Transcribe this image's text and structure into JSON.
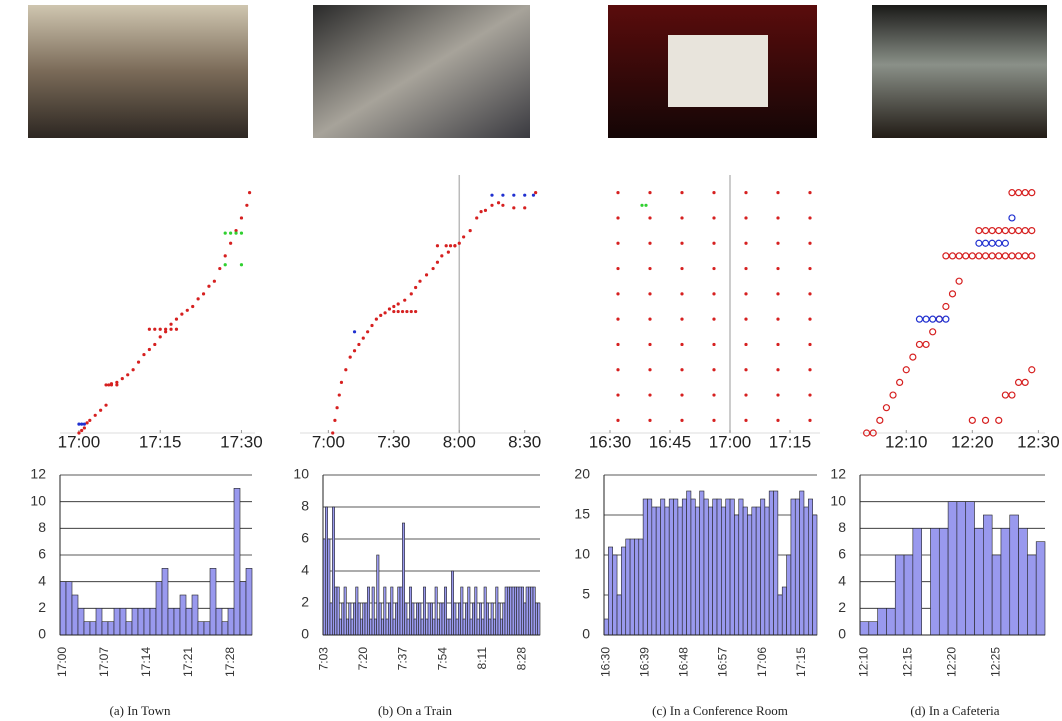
{
  "chart_data": [
    {
      "type": "scatter",
      "xlim": [
        1016.5,
        1052.5
      ],
      "ylim": [
        0,
        20
      ],
      "xticks": [
        {
          "value": 1020,
          "label": "17:00"
        },
        {
          "value": 1035,
          "label": "17:15"
        },
        {
          "value": 1050,
          "label": "17:30"
        }
      ],
      "series": [
        {
          "color": "#d62020",
          "x": [
            1020,
            1020.5,
            1021,
            1021.5,
            1022,
            1023,
            1024,
            1025,
            1025.5,
            1026,
            1027,
            1028,
            1029,
            1030,
            1031,
            1032,
            1033,
            1034,
            1035,
            1036,
            1037,
            1038,
            1039,
            1040,
            1041,
            1042,
            1043,
            1044,
            1045,
            1046,
            1047,
            1048,
            1049,
            1050,
            1051,
            1051.5,
            1033,
            1034,
            1035,
            1036,
            1037,
            1038,
            1025,
            1026,
            1027
          ],
          "values": [
            0,
            0.2,
            0.4,
            0.8,
            1,
            1.4,
            1.8,
            2.2,
            3.8,
            3.9,
            4,
            4.3,
            4.6,
            5,
            5.6,
            6.2,
            6.6,
            7,
            7.6,
            8,
            8.6,
            9,
            9.4,
            9.7,
            10,
            10.6,
            11,
            11.6,
            12,
            13,
            14,
            15,
            16,
            17,
            18,
            19,
            8.2,
            8.2,
            8.2,
            8.2,
            8.2,
            8.2,
            3.8,
            3.8,
            3.8
          ]
        },
        {
          "color": "#2030d0",
          "x": [
            1020,
            1020.5,
            1021
          ],
          "values": [
            0.7,
            0.7,
            0.7
          ]
        },
        {
          "color": "#30d030",
          "x": [
            1047,
            1048,
            1049,
            1050,
            1047,
            1050
          ],
          "values": [
            15.8,
            15.8,
            15.8,
            15.8,
            13.3,
            13.3
          ]
        }
      ]
    },
    {
      "type": "scatter",
      "xlim": [
        407,
        517
      ],
      "ylim": [
        0,
        20
      ],
      "vline": 480,
      "xticks": [
        {
          "value": 420,
          "label": "7:00"
        },
        {
          "value": 450,
          "label": "7:30"
        },
        {
          "value": 480,
          "label": "8:00"
        },
        {
          "value": 510,
          "label": "8:30"
        }
      ],
      "series": [
        {
          "color": "#d62020",
          "x": [
            422,
            423,
            424,
            425,
            426,
            428,
            430,
            432,
            434,
            436,
            438,
            440,
            442,
            444,
            446,
            448,
            450,
            452,
            455,
            458,
            460,
            462,
            465,
            468,
            470,
            472,
            475,
            478,
            480,
            482,
            485,
            488,
            490,
            492,
            495,
            498,
            500,
            505,
            510,
            515,
            450,
            452,
            454,
            456,
            458,
            460,
            470,
            474,
            476,
            478
          ],
          "values": [
            0,
            1,
            2,
            3,
            4,
            5,
            6,
            6.5,
            7,
            7.5,
            8,
            8.5,
            9,
            9.3,
            9.5,
            9.8,
            10,
            10.2,
            10.5,
            11,
            11.5,
            12,
            12.5,
            13,
            13.5,
            14,
            14.3,
            14.8,
            15,
            15.5,
            16,
            17,
            17.5,
            17.6,
            18,
            18.2,
            18,
            17.8,
            17.8,
            19,
            9.6,
            9.6,
            9.6,
            9.6,
            9.6,
            9.6,
            14.8,
            14.8,
            14.8,
            14.8
          ]
        },
        {
          "color": "#2030d0",
          "x": [
            495,
            500,
            505,
            510,
            514,
            432
          ],
          "values": [
            18.8,
            18.8,
            18.8,
            18.8,
            18.8,
            8
          ]
        }
      ]
    },
    {
      "type": "scatter",
      "xlim": [
        985,
        1042.5
      ],
      "ylim": [
        0,
        20
      ],
      "vline": 1020,
      "xticks": [
        {
          "value": 990,
          "label": "16:30"
        },
        {
          "value": 1005,
          "label": "16:45"
        },
        {
          "value": 1020,
          "label": "17:00"
        },
        {
          "value": 1035,
          "label": "17:15"
        }
      ],
      "series": [
        {
          "color": "#d62020",
          "x": [
            992,
            1000,
            1008,
            1016,
            1024,
            1032,
            1040,
            992,
            1000,
            1008,
            1016,
            1024,
            1032,
            1040,
            992,
            1000,
            1008,
            1016,
            1024,
            1032,
            1040,
            992,
            1000,
            1008,
            1016,
            1024,
            1032,
            1040,
            992,
            1000,
            1008,
            1016,
            1024,
            1032,
            1040,
            992,
            1000,
            1008,
            1016,
            1024,
            1032,
            1040,
            992,
            1000,
            1008,
            1016,
            1024,
            1032,
            1040,
            992,
            1000,
            1008,
            1016,
            1024,
            1032,
            1040,
            992,
            1000,
            1008,
            1016,
            1024,
            1032,
            1040,
            992,
            1000,
            1008,
            1016,
            1024,
            1032,
            1040
          ],
          "values": [
            1,
            1,
            1,
            1,
            1,
            1,
            1,
            3,
            3,
            3,
            3,
            3,
            3,
            3,
            5,
            5,
            5,
            5,
            5,
            5,
            5,
            7,
            7,
            7,
            7,
            7,
            7,
            7,
            9,
            9,
            9,
            9,
            9,
            9,
            9,
            11,
            11,
            11,
            11,
            11,
            11,
            11,
            13,
            13,
            13,
            13,
            13,
            13,
            13,
            15,
            15,
            15,
            15,
            15,
            15,
            15,
            17,
            17,
            17,
            17,
            17,
            17,
            17,
            19,
            19,
            19,
            19,
            19,
            19,
            19
          ]
        },
        {
          "color": "#30d030",
          "x": [
            998,
            999
          ],
          "values": [
            18,
            18
          ]
        }
      ]
    },
    {
      "type": "scatter",
      "marker": "ring",
      "xlim": [
        723,
        751
      ],
      "ylim": [
        0,
        20
      ],
      "xticks": [
        {
          "value": 730,
          "label": "12:10"
        },
        {
          "value": 740,
          "label": "12:20"
        },
        {
          "value": 750,
          "label": "12:30"
        }
      ],
      "series": [
        {
          "color": "#d62020",
          "x": [
            724,
            725,
            726,
            727,
            728,
            729,
            730,
            731,
            732,
            733,
            734,
            735,
            736,
            737,
            738,
            740,
            742,
            744,
            745,
            746,
            747,
            748,
            749,
            736,
            737,
            738,
            739,
            740,
            741,
            742,
            743,
            744,
            745,
            746,
            747,
            748,
            749,
            741,
            742,
            743,
            744,
            745,
            746,
            747,
            748,
            749,
            746,
            747,
            748,
            749
          ],
          "values": [
            0,
            0,
            1,
            2,
            3,
            4,
            5,
            6,
            7,
            7,
            8,
            9,
            10,
            11,
            12,
            1,
            1,
            1,
            3,
            3,
            4,
            4,
            5,
            14,
            14,
            14,
            14,
            14,
            14,
            14,
            14,
            14,
            14,
            14,
            14,
            14,
            14,
            16,
            16,
            16,
            16,
            16,
            16,
            16,
            16,
            16,
            19,
            19,
            19,
            19
          ]
        },
        {
          "color": "#2030d0",
          "x": [
            732,
            733,
            734,
            735,
            736,
            741,
            742,
            743,
            744,
            745,
            746
          ],
          "values": [
            9,
            9,
            9,
            9,
            9,
            15,
            15,
            15,
            15,
            15,
            17
          ]
        }
      ]
    },
    {
      "type": "bar",
      "color": "#9999ee",
      "ylim": [
        0,
        12
      ],
      "yticks": [
        0,
        2,
        4,
        6,
        8,
        10,
        12
      ],
      "grid": true,
      "categories": [
        "17:00",
        null,
        null,
        null,
        null,
        null,
        null,
        "17:07",
        null,
        null,
        null,
        null,
        null,
        null,
        "17:14",
        null,
        null,
        null,
        null,
        null,
        null,
        "17:21",
        null,
        null,
        null,
        null,
        null,
        null,
        "17:28",
        null,
        null,
        null
      ],
      "values": [
        4,
        4,
        3,
        2,
        1,
        1,
        2,
        1,
        1,
        2,
        2,
        1,
        2,
        2,
        2,
        2,
        4,
        5,
        2,
        2,
        3,
        2,
        3,
        1,
        1,
        5,
        2,
        1,
        2,
        11,
        4,
        5
      ]
    },
    {
      "type": "bar",
      "color": "#9999ee",
      "ylim": [
        0,
        10
      ],
      "yticks": [
        0,
        2,
        4,
        6,
        8,
        10
      ],
      "grid": true,
      "categories": [
        "7:03",
        null,
        null,
        null,
        null,
        null,
        null,
        null,
        null,
        null,
        null,
        null,
        null,
        null,
        null,
        null,
        null,
        "7:20",
        null,
        null,
        null,
        null,
        null,
        null,
        null,
        null,
        null,
        null,
        null,
        null,
        null,
        null,
        null,
        null,
        "7:37",
        null,
        null,
        null,
        null,
        null,
        null,
        null,
        null,
        null,
        null,
        null,
        null,
        null,
        null,
        null,
        null,
        "7:54",
        null,
        null,
        null,
        null,
        null,
        null,
        null,
        null,
        null,
        null,
        null,
        null,
        null,
        null,
        null,
        null,
        "8:11",
        null,
        null,
        null,
        null,
        null,
        null,
        null,
        null,
        null,
        null,
        null,
        null,
        null,
        null,
        null,
        null,
        "8:28",
        null,
        null,
        null,
        null,
        null,
        null,
        null
      ],
      "values": [
        6,
        8,
        6,
        2,
        8,
        3,
        3,
        1,
        2,
        3,
        1,
        2,
        1,
        2,
        3,
        2,
        1,
        2,
        2,
        3,
        1,
        3,
        1,
        5,
        2,
        1,
        3,
        1,
        2,
        3,
        1,
        2,
        3,
        3,
        7,
        2,
        1,
        3,
        2,
        1,
        2,
        2,
        1,
        3,
        1,
        2,
        2,
        1,
        3,
        1,
        2,
        2,
        3,
        1,
        1,
        4,
        2,
        1,
        2,
        3,
        1,
        2,
        3,
        1,
        2,
        3,
        1,
        2,
        1,
        3,
        2,
        1,
        2,
        1,
        3,
        2,
        1,
        2,
        3,
        3,
        3,
        3,
        3,
        3,
        3,
        3,
        2,
        3,
        3,
        3,
        3,
        2,
        2
      ]
    },
    {
      "type": "bar",
      "color": "#9999ee",
      "ylim": [
        0,
        20
      ],
      "yticks": [
        0,
        5,
        10,
        15,
        20
      ],
      "grid": true,
      "categories": [
        "16:30",
        null,
        null,
        null,
        null,
        null,
        null,
        null,
        null,
        "16:39",
        null,
        null,
        null,
        null,
        null,
        null,
        null,
        null,
        "16:48",
        null,
        null,
        null,
        null,
        null,
        null,
        null,
        null,
        "16:57",
        null,
        null,
        null,
        null,
        null,
        null,
        null,
        null,
        "17:06",
        null,
        null,
        null,
        null,
        null,
        null,
        null,
        null,
        "17:15",
        null,
        null,
        null
      ],
      "values": [
        2,
        11,
        10,
        5,
        11,
        12,
        12,
        12,
        12,
        17,
        17,
        16,
        16,
        17,
        16,
        17,
        17,
        16,
        17,
        18,
        17,
        16,
        18,
        17,
        16,
        17,
        17,
        16,
        17,
        17,
        15,
        17,
        16,
        15,
        16,
        16,
        17,
        16,
        18,
        18,
        5,
        6,
        10,
        17,
        17,
        18,
        16,
        17,
        15
      ]
    },
    {
      "type": "bar",
      "color": "#9999ee",
      "ylim": [
        0,
        12
      ],
      "yticks": [
        0,
        2,
        4,
        6,
        8,
        10,
        12
      ],
      "grid": true,
      "categories": [
        "12:10",
        null,
        null,
        null,
        null,
        "12:15",
        null,
        null,
        null,
        null,
        "12:20",
        null,
        null,
        null,
        null,
        "12:25",
        null,
        null,
        null,
        null,
        null
      ],
      "values": [
        1,
        1,
        2,
        2,
        6,
        6,
        8,
        0,
        8,
        8,
        10,
        10,
        10,
        8,
        9,
        6,
        8,
        9,
        8,
        6,
        7
      ]
    }
  ],
  "captions": [
    "(a) In Town",
    "(b) On a Train",
    "(c) In a Conference Room",
    "(d) In a Cafeteria"
  ]
}
